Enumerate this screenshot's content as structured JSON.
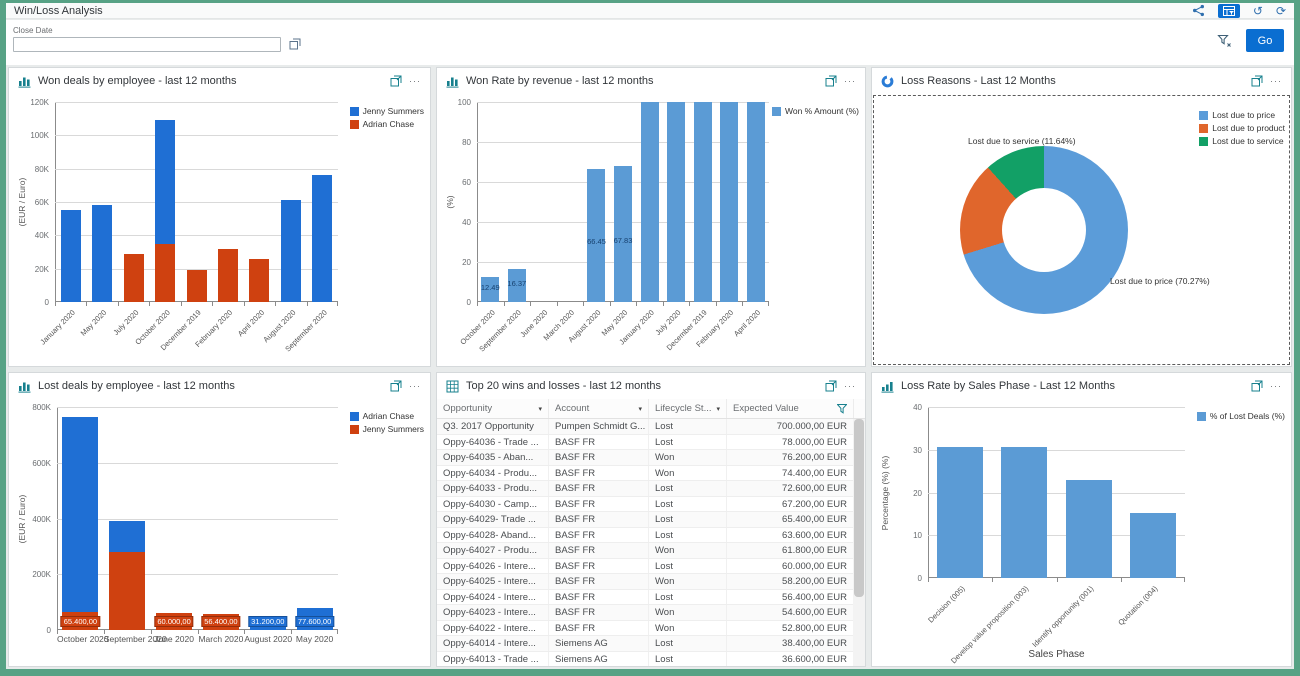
{
  "app": {
    "title": "Win/Loss Analysis"
  },
  "icons": {
    "undo_glyph": "↺",
    "refresh_glyph": "⟳",
    "overflow_glyph": "···"
  },
  "filter_bar": {
    "close_date_label": "Close Date",
    "close_date_value": "",
    "go_label": "Go"
  },
  "tiles": {
    "won_deals": {
      "title": "Won deals by employee - last 12 months"
    },
    "won_rate": {
      "title": "Won Rate by revenue - last 12 months"
    },
    "loss_reasons": {
      "title": "Loss Reasons - Last 12 Months"
    },
    "lost_deals": {
      "title": "Lost deals by employee - last 12 months"
    },
    "top20": {
      "title": "Top 20 wins and losses - last 12 months"
    },
    "loss_rate": {
      "title": "Loss Rate by Sales Phase - Last 12 Months"
    }
  },
  "chart_data": [
    {
      "id": "won_deals",
      "type": "bar",
      "stacked": true,
      "categories": [
        "January 2020",
        "May 2020",
        "July 2020",
        "October 2020",
        "December 2019",
        "February 2020",
        "April 2020",
        "August 2020",
        "September 2020"
      ],
      "series": [
        {
          "name": "Jenny Summers",
          "color": "#1f6fd4",
          "values": [
            55000,
            58000,
            0,
            74000,
            0,
            0,
            0,
            61000,
            76000
          ]
        },
        {
          "name": "Adrian Chase",
          "color": "#cf4110",
          "values": [
            0,
            0,
            29000,
            35000,
            19000,
            32000,
            26000,
            0,
            0
          ]
        }
      ],
      "ylabel": "(EUR / Euro)",
      "ylim": [
        0,
        120000
      ],
      "ytick": 20000,
      "tick_format": "K",
      "grid": true,
      "legend_position": "top-right"
    },
    {
      "id": "won_rate",
      "type": "bar",
      "stacked": false,
      "categories": [
        "October 2020",
        "September 2020",
        "June 2020",
        "March 2020",
        "August 2020",
        "May 2020",
        "January 2020",
        "July 2020",
        "December 2019",
        "February 2020",
        "April 2020"
      ],
      "series": [
        {
          "name": "Won % Amount (%)",
          "color": "#5b9bd5",
          "values": [
            12.49,
            16.37,
            0,
            0,
            66.45,
            67.83,
            100,
            100,
            100,
            100,
            100
          ],
          "labels": [
            "12.49",
            "16.37",
            null,
            null,
            "66.45",
            "67.83",
            null,
            null,
            null,
            null,
            null
          ]
        }
      ],
      "ylabel": "(%)",
      "ylim": [
        0,
        100
      ],
      "ytick": 20,
      "grid": true,
      "legend_position": "top-right"
    },
    {
      "id": "loss_reasons",
      "type": "pie",
      "donut": true,
      "slices": [
        {
          "label": "Lost due to price",
          "value_pct": 70.27,
          "color": "#5b9cd9"
        },
        {
          "label": "Lost due to product",
          "value_pct": 18.09,
          "color": "#e0662c"
        },
        {
          "label": "Lost due to service",
          "value_pct": 11.64,
          "color": "#12a066"
        }
      ],
      "callouts": [
        {
          "text": "Lost due to service (11.64%)",
          "x": 96,
          "y": 42
        },
        {
          "text": "Lost due to price (70.27%)",
          "x": 238,
          "y": 182
        }
      ],
      "legend_position": "top-right"
    },
    {
      "id": "lost_deals",
      "type": "bar",
      "stacked": true,
      "categories": [
        "October 2020",
        "September 2020",
        "June 2020",
        "March 2020",
        "August 2020",
        "May 2020"
      ],
      "series": [
        {
          "name": "Adrian Chase",
          "color": "#1f6fd4",
          "values": [
            700000,
            110000,
            0,
            0,
            31200,
            77600
          ],
          "labels": [
            null,
            null,
            null,
            null,
            "31.200,00",
            "77.600,00"
          ]
        },
        {
          "name": "Jenny Summers",
          "color": "#cf4110",
          "values": [
            65400,
            280000,
            60000,
            56400,
            0,
            0
          ],
          "labels": [
            "65.400,00",
            null,
            "60.000,00",
            "56.400,00",
            null,
            null
          ]
        }
      ],
      "ylabel": "(EUR / Euro)",
      "ylim": [
        0,
        800000
      ],
      "ytick": 200000,
      "tick_format": "K",
      "label_style": "box",
      "grid": true,
      "legend_position": "top-right"
    },
    {
      "id": "top20",
      "type": "table",
      "columns": [
        {
          "label": "Opportunity",
          "sort": true
        },
        {
          "label": "Account",
          "sort": true
        },
        {
          "label": "Lifecycle St...",
          "sort": true
        },
        {
          "label": "Expected Value",
          "filter": true
        }
      ],
      "rows": [
        [
          "Q3. 2017 Opportunity",
          "Pumpen Schmidt G...",
          "Lost",
          "700.000,00 EUR"
        ],
        [
          "Oppy-64036 - Trade ...",
          "BASF FR",
          "Lost",
          "78.000,00 EUR"
        ],
        [
          "Oppy-64035 - Aban...",
          "BASF FR",
          "Won",
          "76.200,00 EUR"
        ],
        [
          "Oppy-64034 - Produ...",
          "BASF FR",
          "Won",
          "74.400,00 EUR"
        ],
        [
          "Oppy-64033 - Produ...",
          "BASF FR",
          "Lost",
          "72.600,00 EUR"
        ],
        [
          "Oppy-64030 - Camp...",
          "BASF FR",
          "Lost",
          "67.200,00 EUR"
        ],
        [
          "Oppy-64029- Trade ...",
          "BASF FR",
          "Lost",
          "65.400,00 EUR"
        ],
        [
          "Oppy-64028- Aband...",
          "BASF FR",
          "Lost",
          "63.600,00 EUR"
        ],
        [
          "Oppy-64027 - Produ...",
          "BASF FR",
          "Won",
          "61.800,00 EUR"
        ],
        [
          "Oppy-64026 - Intere...",
          "BASF FR",
          "Lost",
          "60.000,00 EUR"
        ],
        [
          "Oppy-64025 - Intere...",
          "BASF FR",
          "Won",
          "58.200,00 EUR"
        ],
        [
          "Oppy-64024 - Intere...",
          "BASF FR",
          "Lost",
          "56.400,00 EUR"
        ],
        [
          "Oppy-64023 - Intere...",
          "BASF FR",
          "Won",
          "54.600,00 EUR"
        ],
        [
          "Oppy-64022 - Intere...",
          "BASF FR",
          "Won",
          "52.800,00 EUR"
        ],
        [
          "Oppy-64014 - Intere...",
          "Siemens AG",
          "Lost",
          "38.400,00 EUR"
        ],
        [
          "Oppy-64013 - Trade ...",
          "Siemens AG",
          "Lost",
          "36.600,00 EUR"
        ]
      ]
    },
    {
      "id": "loss_rate",
      "type": "bar",
      "stacked": false,
      "categories": [
        "Decision (005)",
        "Develop value proposition (003)",
        "Identify opportunity (001)",
        "Quotation (004)"
      ],
      "series": [
        {
          "name": "% of Lost Deals (%)",
          "color": "#5b9bd5",
          "values": [
            30.7,
            30.7,
            23,
            15.3
          ]
        }
      ],
      "ylabel": "Percentage (%) (%)",
      "xlabel": "Sales Phase",
      "ylim": [
        0,
        40
      ],
      "ytick": 10,
      "grid": true,
      "legend_position": "top-right"
    }
  ]
}
